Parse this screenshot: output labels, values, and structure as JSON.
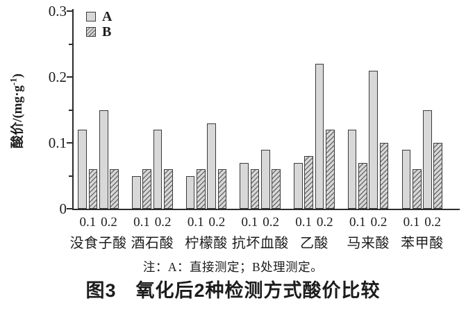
{
  "figure": {
    "note": "注：A：直接测定；B处理测定。",
    "caption": "图3　氧化后2种检测方式酸价比较"
  },
  "y_axis": {
    "label_prefix": "酸价/(mg·g",
    "label_sup": "-1",
    "label_suffix": ")",
    "ticks": [
      "0",
      "0.1",
      "0.2",
      "0.3"
    ]
  },
  "legend": [
    {
      "name": "A",
      "style": "solid"
    },
    {
      "name": "B",
      "style": "hatched"
    }
  ],
  "colors": {
    "bar_fill": "#d8d8d8",
    "bar_border": "#3a3a3a",
    "hatch_line": "#6d6d6d",
    "axis": "#2b2b2b",
    "background": "#ffffff"
  },
  "chart_data": {
    "type": "bar",
    "title": "图3 氧化后2种检测方式酸价比较",
    "note": "注：A：直接测定；B处理测定。",
    "ylabel": "酸价/(mg·g-1)",
    "ylim": [
      0,
      0.3
    ],
    "y_tick_step_major": 0.1,
    "y_tick_step_minor": 0.05,
    "grid": false,
    "legend_position": "top-left-inside",
    "categories": [
      "没食子酸",
      "酒石酸",
      "柠檬酸",
      "抗坏血酸",
      "乙酸",
      "马来酸",
      "苯甲酸"
    ],
    "subgroups": [
      "0.1",
      "0.2"
    ],
    "series": [
      {
        "name": "A",
        "style": "solid",
        "values": [
          [
            0.12,
            0.15
          ],
          [
            0.05,
            0.12
          ],
          [
            0.05,
            0.13
          ],
          [
            0.07,
            0.09
          ],
          [
            0.07,
            0.22
          ],
          [
            0.12,
            0.21
          ],
          [
            0.09,
            0.15
          ]
        ]
      },
      {
        "name": "B",
        "style": "hatched",
        "values": [
          [
            0.06,
            0.06
          ],
          [
            0.06,
            0.06
          ],
          [
            0.06,
            0.06
          ],
          [
            0.06,
            0.06
          ],
          [
            0.08,
            0.12
          ],
          [
            0.07,
            0.1
          ],
          [
            0.06,
            0.1
          ]
        ]
      }
    ]
  }
}
